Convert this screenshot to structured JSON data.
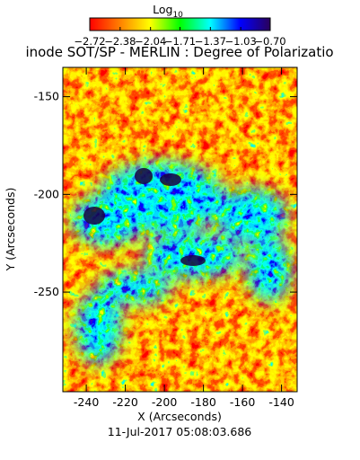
{
  "chart_data": {
    "type": "image",
    "title": "inode SOT/SP - MERLIN : Degree of Polarizatio",
    "x_label": "X (Arcseconds)",
    "y_label": "Y (Arcseconds)",
    "date": "11-Jul-2017 05:08:03.686",
    "colorbar": {
      "label": "Log",
      "label_subscript": "10",
      "lim": [
        -2.72,
        -0.7
      ],
      "ticks": [
        {
          "value": -2.72,
          "label": "−2.72"
        },
        {
          "value": -2.38,
          "label": "−2.38"
        },
        {
          "value": -2.04,
          "label": "−2.04"
        },
        {
          "value": -1.71,
          "label": "−1.71"
        },
        {
          "value": -1.37,
          "label": "−1.37"
        },
        {
          "value": -1.03,
          "label": "−1.03"
        },
        {
          "value": -0.7,
          "label": "−0.70"
        }
      ],
      "colors": [
        "#ff0000",
        "#ff8000",
        "#ffff00",
        "#00ff00",
        "#00ffff",
        "#0000ff",
        "#2a005a"
      ]
    },
    "xlim": [
      -252,
      -132
    ],
    "ylim": [
      -301,
      -135
    ],
    "xticks": [
      -240,
      -220,
      -200,
      -180,
      -160,
      -140
    ],
    "yticks": [
      -250,
      -200,
      -150
    ]
  }
}
